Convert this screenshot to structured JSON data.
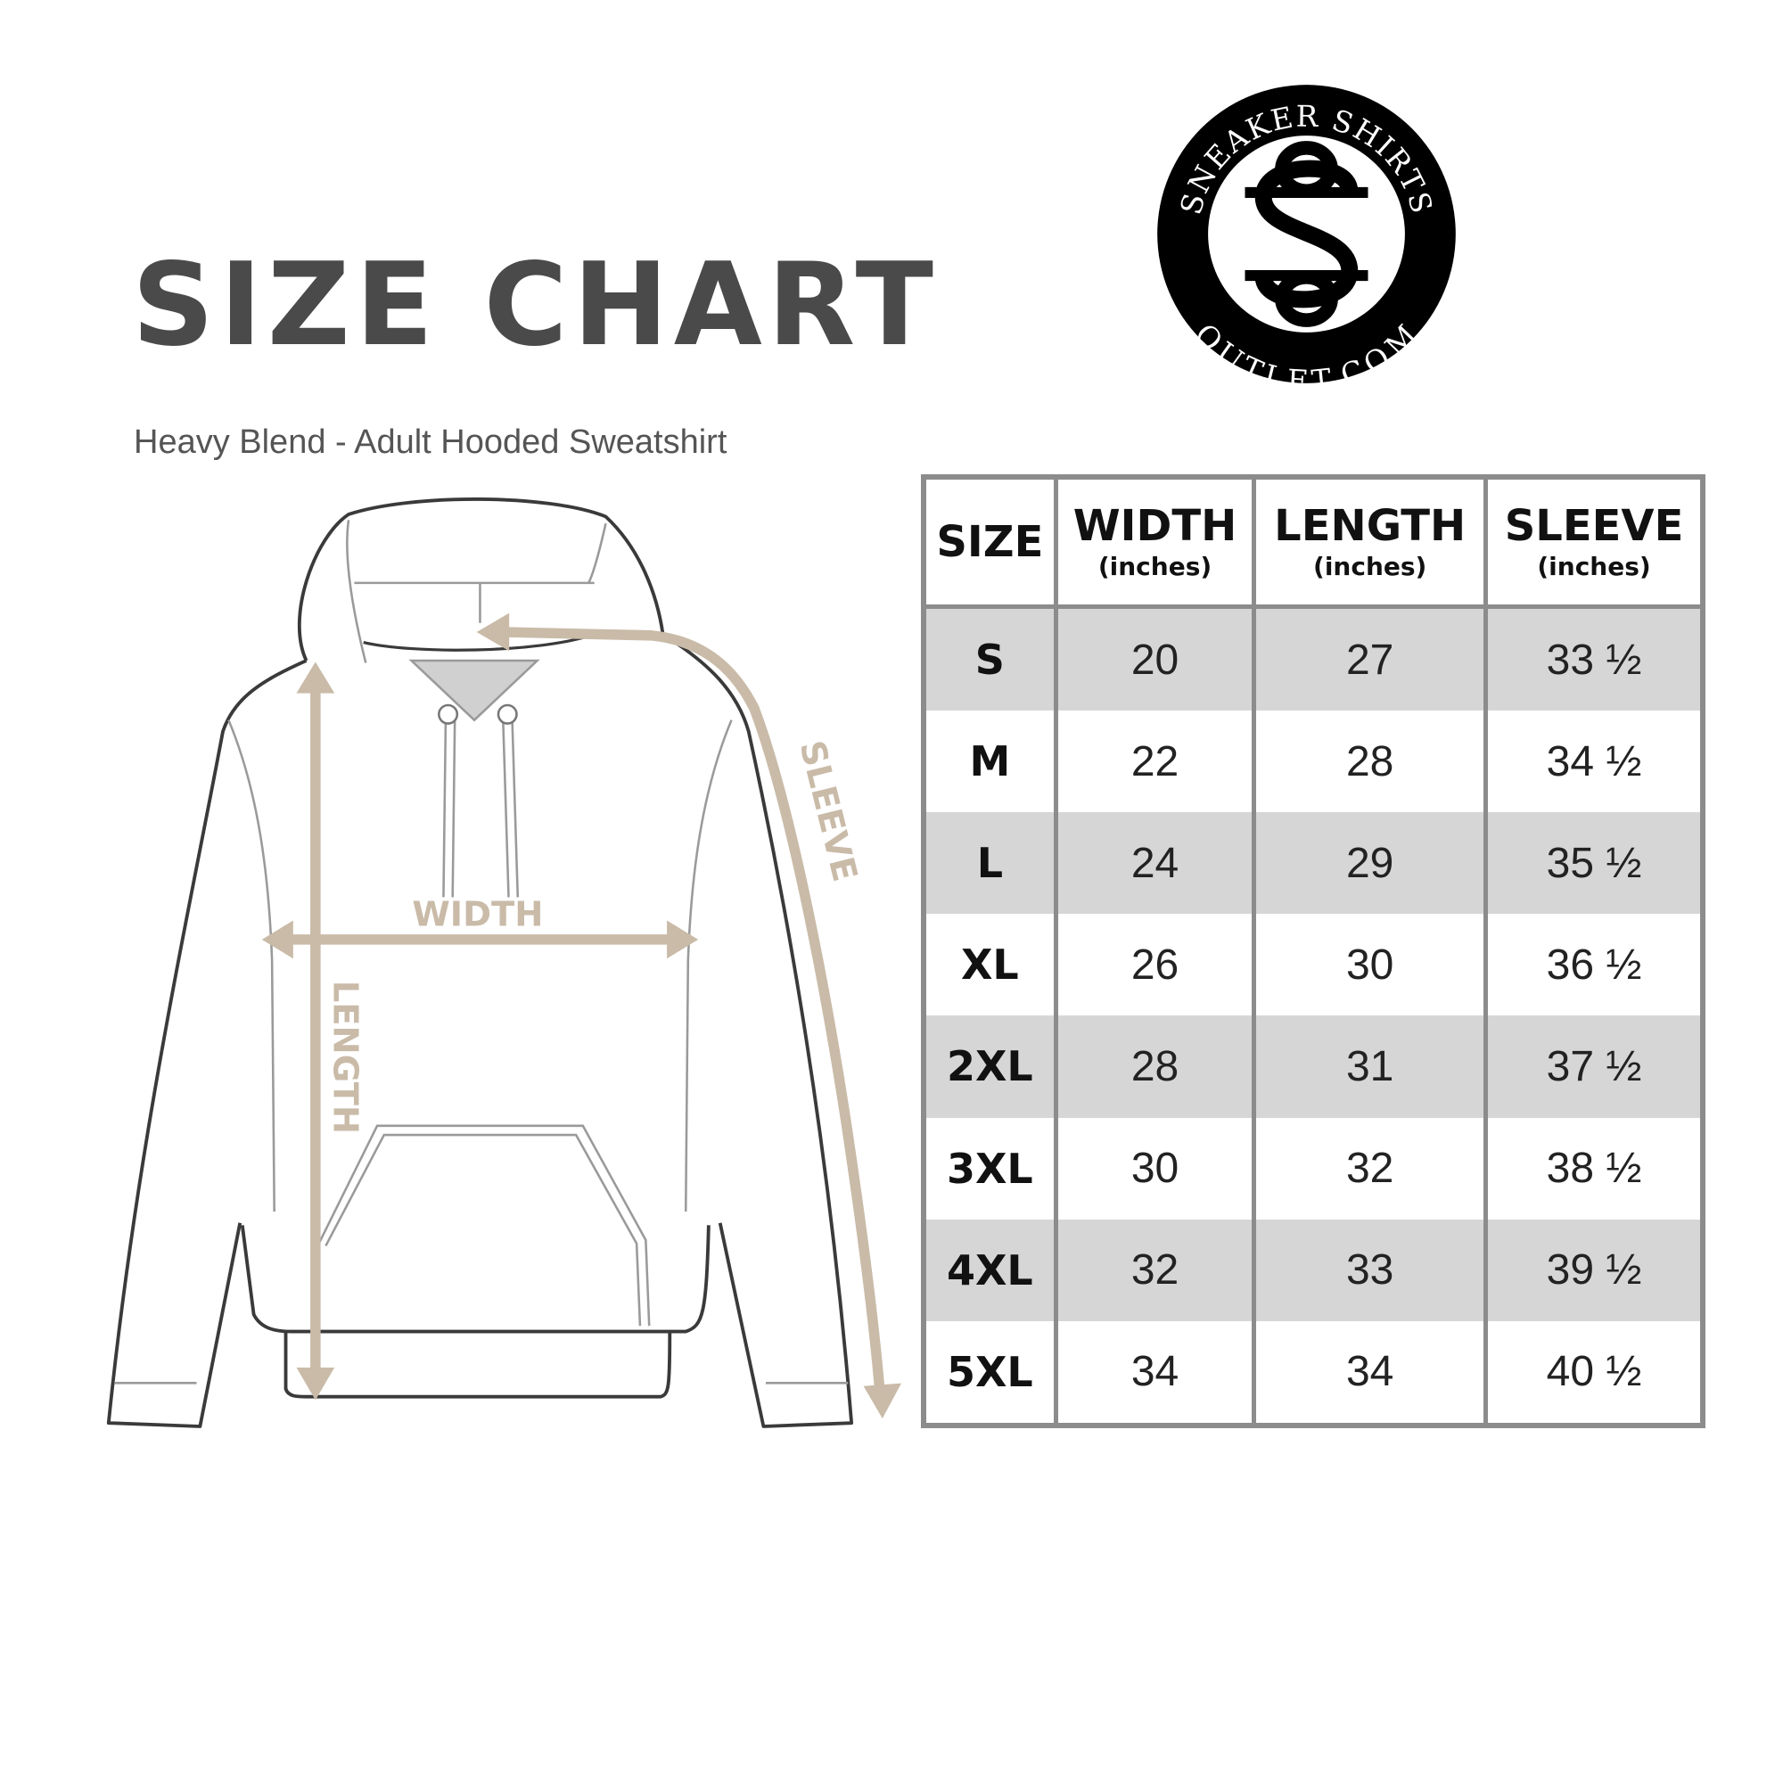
{
  "title": "SIZE CHART",
  "subtitle": "Heavy Blend - Adult Hooded Sweatshirt",
  "logo": {
    "top_text": "SNEAKER SHIRTS",
    "bottom_text": "OUTLET.COM",
    "monogram": "SS"
  },
  "diagram": {
    "width_label": "WIDTH",
    "length_label": "LENGTH",
    "sleeve_label": "SLEEVE",
    "measure_color": "#c9bba8",
    "outline_color": "#3a3a3a"
  },
  "table": {
    "headers": [
      {
        "label": "SIZE",
        "unit": ""
      },
      {
        "label": "WIDTH",
        "unit": "(inches)"
      },
      {
        "label": "LENGTH",
        "unit": "(inches)"
      },
      {
        "label": "SLEEVE",
        "unit": "(inches)"
      }
    ],
    "rows": [
      [
        "S",
        "20",
        "27",
        "33 ½"
      ],
      [
        "M",
        "22",
        "28",
        "34 ½"
      ],
      [
        "L",
        "24",
        "29",
        "35 ½"
      ],
      [
        "XL",
        "26",
        "30",
        "36 ½"
      ],
      [
        "2XL",
        "28",
        "31",
        "37 ½"
      ],
      [
        "3XL",
        "30",
        "32",
        "38 ½"
      ],
      [
        "4XL",
        "32",
        "33",
        "39 ½"
      ],
      [
        "5XL",
        "34",
        "34",
        "40 ½"
      ]
    ],
    "shade_color": "#d6d6d6",
    "border_color": "#8c8c8c"
  }
}
